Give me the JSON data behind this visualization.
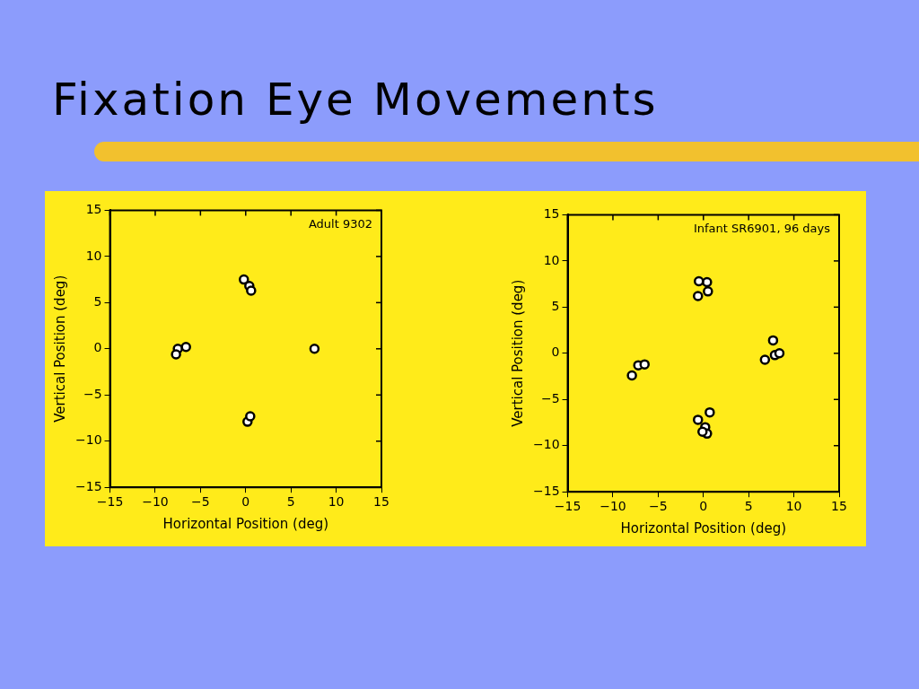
{
  "chart_data": [
    {
      "type": "scatter",
      "title": "Fixation Eye Movements",
      "xlabel": "Horizontal Position (deg)",
      "ylabel": "Vertical Position (deg)",
      "annotations": [
        "Adult 9302"
      ],
      "xlim": [
        -15,
        15
      ],
      "ylim": [
        -15,
        15
      ],
      "xticks": [
        -15,
        -10,
        -5,
        0,
        5,
        10,
        15
      ],
      "yticks": [
        -15,
        -10,
        -5,
        0,
        5,
        10,
        15
      ],
      "grid": false,
      "legend": false,
      "marker": "circle",
      "series": [
        {
          "color": "#000000",
          "x": [
            -0.2,
            0.4,
            0.6,
            -7.5,
            -6.6,
            -7.7,
            7.6,
            0.2,
            0.5
          ],
          "values": [
            7.5,
            6.8,
            6.3,
            0,
            0.2,
            -0.6,
            0,
            -7.9,
            -7.3
          ]
        }
      ]
    },
    {
      "type": "scatter",
      "xlabel": "Horizontal Position (deg)",
      "ylabel": "Vertical Position (deg)",
      "annotations": [
        "Infant SR6901, 96 days"
      ],
      "xlim": [
        -15,
        15
      ],
      "ylim": [
        -15,
        15
      ],
      "xticks": [
        -15,
        -10,
        -5,
        0,
        5,
        10,
        15
      ],
      "yticks": [
        -15,
        -10,
        -5,
        0,
        5,
        10,
        15
      ],
      "grid": false,
      "legend": false,
      "marker": "circle",
      "series": [
        {
          "color": "#000000",
          "x": [
            -0.6,
            0.5,
            0.4,
            -0.5,
            -7.2,
            -7.9,
            -6.5,
            7.9,
            7.7,
            6.8,
            8.4,
            -0.6,
            0.2,
            0.4,
            0.7,
            -0.1
          ],
          "values": [
            6.2,
            6.7,
            7.7,
            7.8,
            -1.3,
            -2.4,
            -1.2,
            -0.2,
            1.4,
            -0.7,
            0,
            -7.2,
            -8.0,
            -8.7,
            -6.4,
            -8.5
          ]
        }
      ]
    }
  ]
}
